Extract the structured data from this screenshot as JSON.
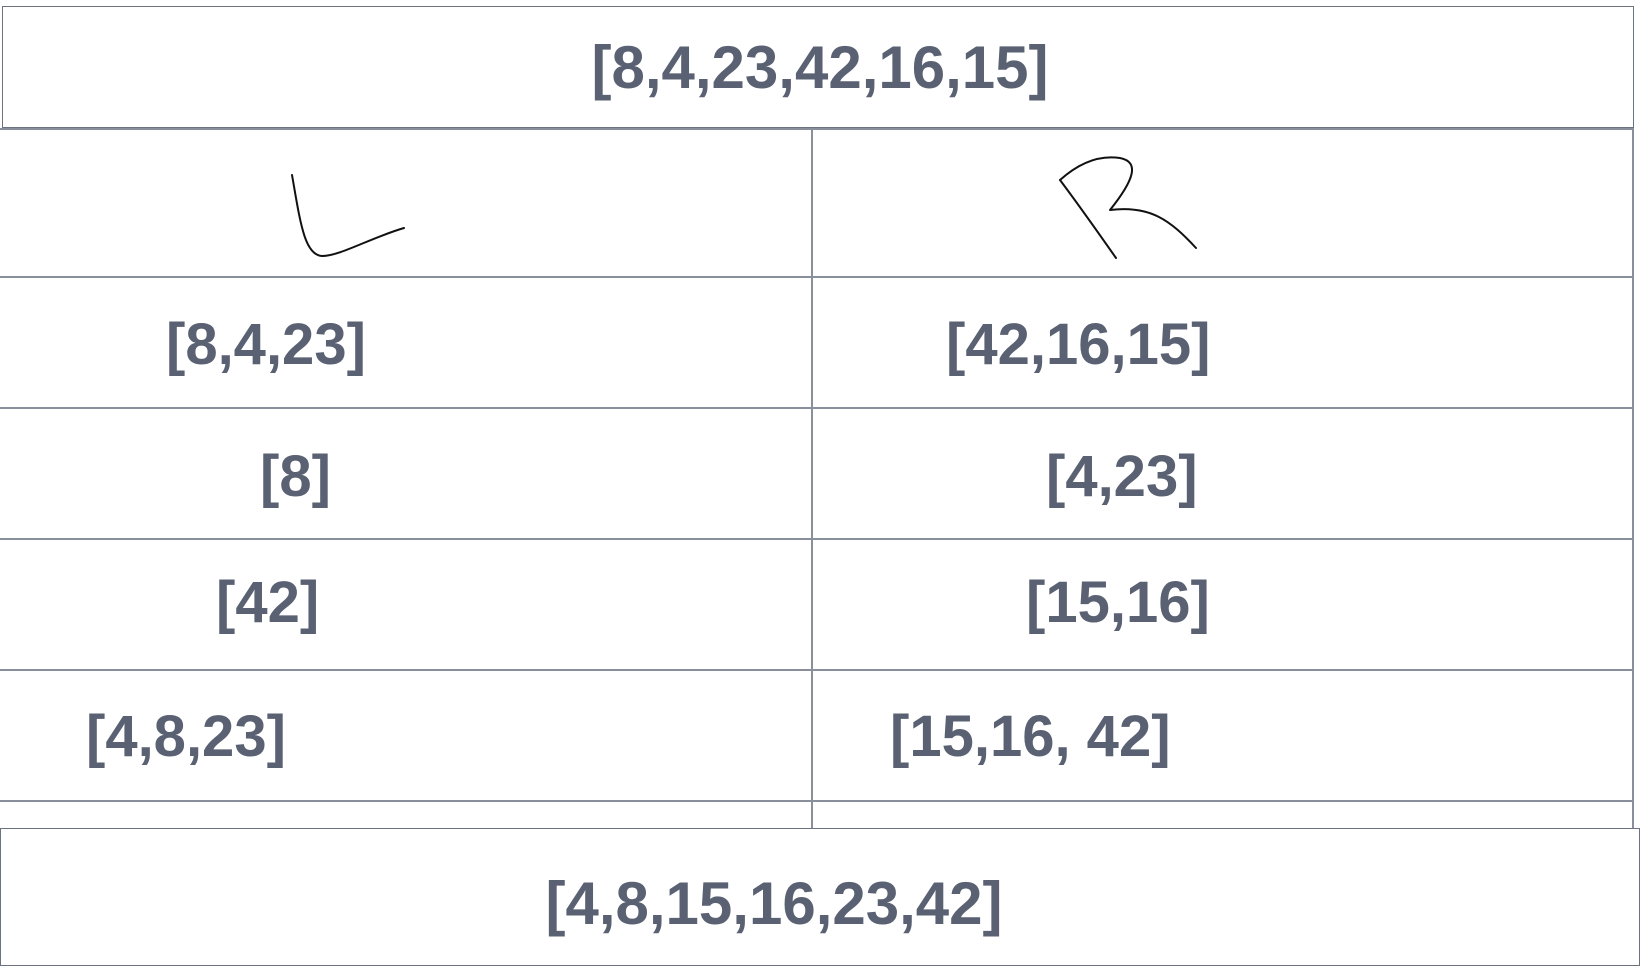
{
  "top": {
    "array": "[8,4,23,42,16,15]"
  },
  "columns": {
    "left_header": "L",
    "right_header": "R"
  },
  "rows": [
    {
      "left": "[8,4,23]",
      "right": "[42,16,15]"
    },
    {
      "left": "[8]",
      "right": "[4,23]"
    },
    {
      "left": "[42]",
      "right": "[15,16]"
    },
    {
      "left": "[4,8,23]",
      "right": "[15,16, 42]"
    }
  ],
  "bottom": {
    "array": "[4,8,15,16,23,42]"
  },
  "colors": {
    "text": "#5a6172",
    "border": "#6b7280",
    "ink": "#111111"
  }
}
